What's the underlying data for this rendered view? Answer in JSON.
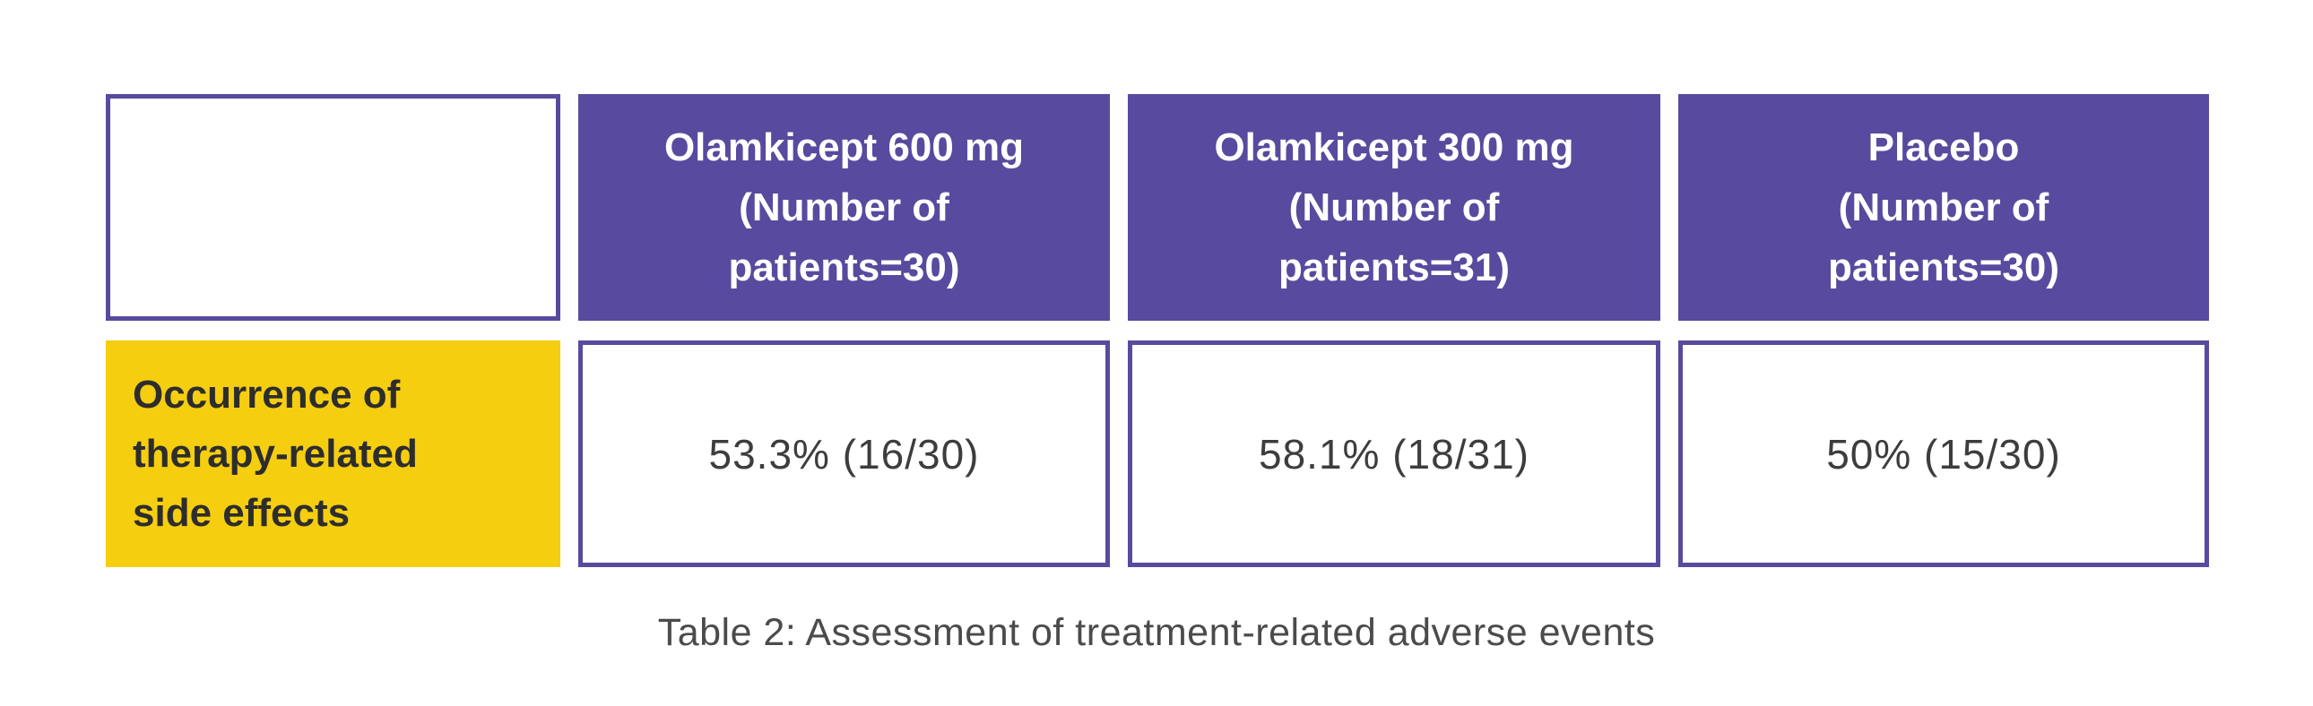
{
  "colors": {
    "header_bg": "#584a9e",
    "cell_border": "#584a9e",
    "label_bg": "#f5ce10",
    "header_text": "#ffffff",
    "label_text": "#2d2d2d",
    "value_text": "#3d3d3d",
    "caption_text": "#4b4b4b",
    "page_bg": "#ffffff"
  },
  "table": {
    "columns": [
      {
        "title_lines": [
          "Olamkicept 600 mg",
          "(Number of",
          "patients=30)"
        ]
      },
      {
        "title_lines": [
          "Olamkicept 300 mg",
          "(Number of",
          "patients=31)"
        ]
      },
      {
        "title_lines": [
          "Placebo",
          "(Number of",
          "patients=30)"
        ]
      }
    ],
    "row_label_lines": [
      "Occurrence of",
      "therapy-related",
      "side effects"
    ],
    "values": [
      "53.3% (16/30)",
      "58.1% (18/31)",
      "50% (15/30)"
    ]
  },
  "caption": "Table 2: Assessment of treatment-related adverse events",
  "chart_data": {
    "type": "table",
    "title": "Table 2: Assessment of treatment-related adverse events",
    "columns": [
      "",
      "Olamkicept 600 mg (Number of patients=30)",
      "Olamkicept 300 mg (Number of patients=31)",
      "Placebo (Number of patients=30)"
    ],
    "group_sizes": [
      30,
      31,
      30
    ],
    "rows": [
      {
        "label": "Occurrence of therapy-related side effects",
        "values": [
          "53.3% (16/30)",
          "58.1% (18/31)",
          "50% (15/30)"
        ],
        "values_percent": [
          53.3,
          58.1,
          50
        ],
        "values_fraction": [
          "16/30",
          "18/31",
          "15/30"
        ]
      }
    ]
  }
}
